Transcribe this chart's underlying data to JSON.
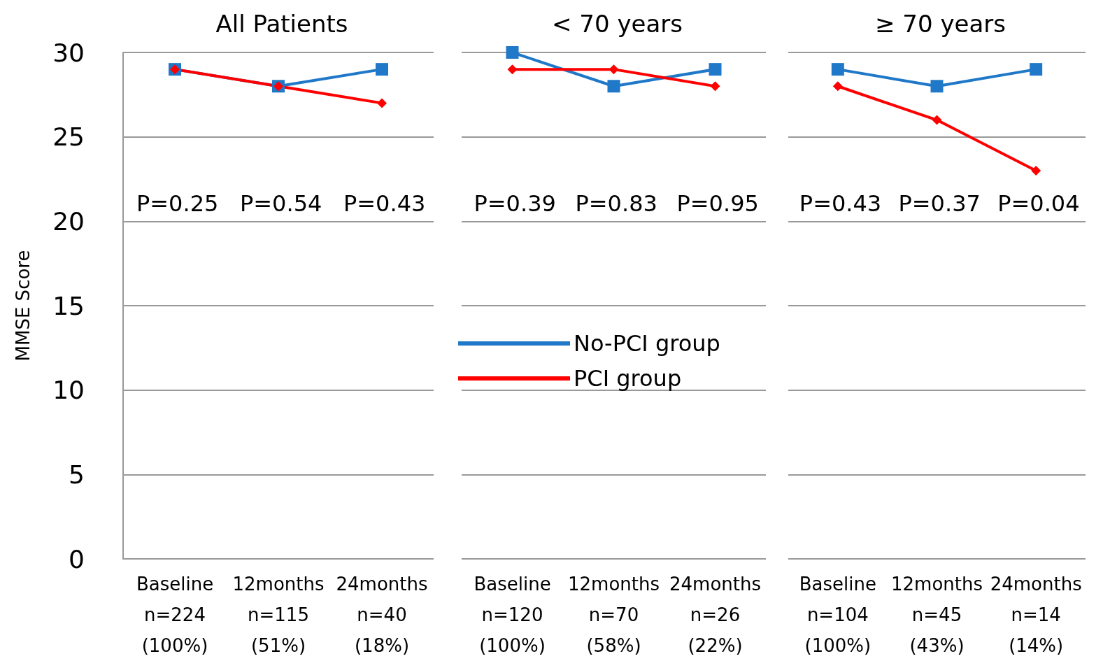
{
  "chart_data": [
    {
      "type": "line",
      "title": "All Patients",
      "ylabel": "MMSE Score",
      "categories": [
        "Baseline\nn=224\n(100%)",
        "12months\nn=115\n(51%)",
        "24months\nn=40\n(18%)"
      ],
      "series": [
        {
          "color": "#1f78c8",
          "marker": "square",
          "values": [
            29,
            28,
            29
          ]
        },
        {
          "color": "#ff0000",
          "marker": "diamond",
          "values": [
            29,
            28,
            27
          ]
        }
      ],
      "ylim": [
        0,
        30
      ],
      "yticks": [
        0,
        5,
        10,
        15,
        20,
        25,
        30
      ],
      "grid": "y",
      "legend": false,
      "annotations": [
        "P=0.25",
        "P=0.54",
        "P=0.43"
      ]
    },
    {
      "type": "line",
      "title": "< 70 years",
      "categories": [
        "Baseline\nn=120\n(100%)",
        "12months\nn=70\n(58%)",
        "24months\nn=26\n(22%)"
      ],
      "series": [
        {
          "name": "No-PCI group",
          "color": "#1f78c8",
          "marker": "square",
          "values": [
            30,
            28,
            29
          ]
        },
        {
          "name": "PCI group",
          "color": "#ff0000",
          "marker": "diamond",
          "values": [
            29,
            29,
            28
          ]
        }
      ],
      "ylim": [
        0,
        30
      ],
      "yticks": [
        0,
        5,
        10,
        15,
        20,
        25,
        30
      ],
      "grid": "y",
      "legend": "left",
      "tick_labels": "x",
      "annotations": [
        "P=0.39",
        "P=0.83",
        "P=0.95"
      ]
    },
    {
      "type": "line",
      "title": "≥ 70 years",
      "categories": [
        "Baseline\nn=104\n(100%)",
        "12months\nn=45\n(43%)",
        "24months\nn=14\n(14%)"
      ],
      "series": [
        {
          "color": "#1f78c8",
          "marker": "square",
          "values": [
            29,
            28,
            29
          ]
        },
        {
          "color": "#ff0000",
          "marker": "diamond",
          "values": [
            28,
            26,
            23
          ]
        }
      ],
      "ylim": [
        0,
        30
      ],
      "yticks": [
        0,
        5,
        10,
        15,
        20,
        25,
        30
      ],
      "grid": "y",
      "legend": false,
      "tick_labels": "x",
      "annotations": [
        "P=0.43",
        "P=0.37",
        "P=0.04"
      ]
    }
  ]
}
